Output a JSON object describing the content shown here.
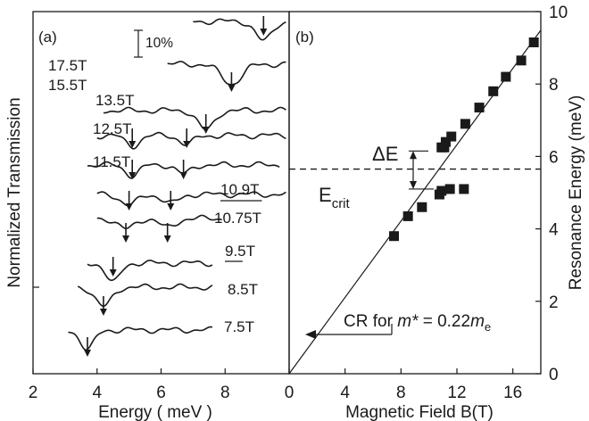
{
  "chart_data": [
    {
      "panel_label": "(a)",
      "type": "line",
      "xlabel": "Energy ( meV )",
      "ylabel": "Normalized Transmission",
      "xlim": [
        2,
        10
      ],
      "x_ticks": [
        2,
        4,
        6,
        8
      ],
      "scale_bar_label": "10%",
      "series": [
        {
          "name": "17.5T",
          "dips": [
            9.2
          ]
        },
        {
          "name": "15.5T",
          "dips": [
            8.2
          ]
        },
        {
          "name": "13.5T",
          "dips": [
            7.4
          ]
        },
        {
          "name": "12.5T",
          "dips": [
            5.1,
            6.8
          ]
        },
        {
          "name": "11.5T",
          "dips": [
            5.1,
            6.7
          ]
        },
        {
          "name": "10.9T",
          "dips": [
            5.0,
            6.3
          ]
        },
        {
          "name": "10.75T",
          "dips": [
            4.9,
            6.2
          ]
        },
        {
          "name": "9.5T",
          "dips": [
            4.5
          ]
        },
        {
          "name": "8.5T",
          "dips": [
            4.2
          ]
        },
        {
          "name": "7.5T",
          "dips": [
            3.7
          ]
        }
      ]
    },
    {
      "panel_label": "(b)",
      "type": "scatter",
      "xlabel": "Magnetic Field B(T)",
      "ylabel": "Resonance Energy (meV)",
      "xlim": [
        0,
        18
      ],
      "ylim": [
        0,
        10
      ],
      "x_ticks": [
        0,
        4,
        8,
        12,
        16
      ],
      "y_ticks": [
        0,
        2,
        4,
        6,
        8,
        10
      ],
      "points": [
        {
          "x": 7.5,
          "y": 3.8
        },
        {
          "x": 8.5,
          "y": 4.35
        },
        {
          "x": 9.5,
          "y": 4.6
        },
        {
          "x": 10.75,
          "y": 4.95
        },
        {
          "x": 10.9,
          "y": 5.05
        },
        {
          "x": 10.9,
          "y": 6.25
        },
        {
          "x": 11.1,
          "y": 6.25
        },
        {
          "x": 11.2,
          "y": 6.4
        },
        {
          "x": 11.5,
          "y": 5.1
        },
        {
          "x": 11.6,
          "y": 6.55
        },
        {
          "x": 12.5,
          "y": 5.1
        },
        {
          "x": 12.6,
          "y": 6.9
        },
        {
          "x": 13.6,
          "y": 7.35
        },
        {
          "x": 14.6,
          "y": 7.8
        },
        {
          "x": 15.5,
          "y": 8.2
        },
        {
          "x": 16.6,
          "y": 8.65
        },
        {
          "x": 17.5,
          "y": 9.15
        }
      ],
      "cr_line": {
        "slope": 0.527,
        "label_prefix": "CR for ",
        "label_m": "m*",
        "label_mid": " = 0.22",
        "label_me": "m",
        "label_sub": "e"
      },
      "e_crit": {
        "y": 5.65,
        "label": "E",
        "label_sub": "crit"
      },
      "delta_e": {
        "y_low": 5.1,
        "y_high": 6.15,
        "label": "ΔE"
      }
    }
  ]
}
